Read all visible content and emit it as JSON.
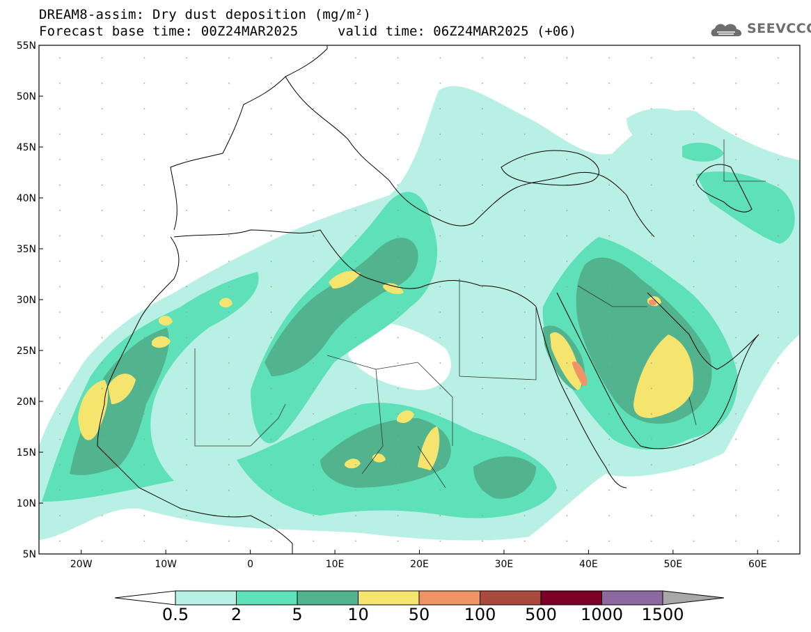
{
  "header": {
    "title": "DREAM8-assim: Dry dust deposition (mg/m²)",
    "base_time": "Forecast base time: 00Z24MAR2025",
    "valid_time": "valid time: 06Z24MAR2025 (+06)",
    "logo_text": "SEEVCCC",
    "logo_icon": "cloud-logo-icon"
  },
  "map": {
    "extent": {
      "lon_min": -25,
      "lon_max": 65,
      "lat_min": 5,
      "lat_max": 55
    },
    "lat_ticks": [
      {
        "value": 55,
        "label": "55N"
      },
      {
        "value": 50,
        "label": "50N"
      },
      {
        "value": 45,
        "label": "45N"
      },
      {
        "value": 40,
        "label": "40N"
      },
      {
        "value": 35,
        "label": "35N"
      },
      {
        "value": 30,
        "label": "30N"
      },
      {
        "value": 25,
        "label": "25N"
      },
      {
        "value": 20,
        "label": "20N"
      },
      {
        "value": 15,
        "label": "15N"
      },
      {
        "value": 10,
        "label": "10N"
      },
      {
        "value": 5,
        "label": "5N"
      }
    ],
    "lon_ticks": [
      {
        "value": -20,
        "label": "20W"
      },
      {
        "value": -10,
        "label": "10W"
      },
      {
        "value": 0,
        "label": "0"
      },
      {
        "value": 10,
        "label": "10E"
      },
      {
        "value": 20,
        "label": "20E"
      },
      {
        "value": 30,
        "label": "30E"
      },
      {
        "value": 40,
        "label": "40E"
      },
      {
        "value": 50,
        "label": "50E"
      },
      {
        "value": 60,
        "label": "60E"
      }
    ]
  },
  "colorbar": {
    "colors": [
      "#b8f0e6",
      "#5ee0b8",
      "#52b48e",
      "#f5e46e",
      "#ee9466",
      "#a84a3e",
      "#7a0028",
      "#8c6aa0"
    ],
    "under_color": "#ffffff",
    "over_color": "#a8a8a8",
    "labels": [
      "0.5",
      "2",
      "5",
      "10",
      "50",
      "100",
      "500",
      "1000",
      "1500"
    ]
  }
}
